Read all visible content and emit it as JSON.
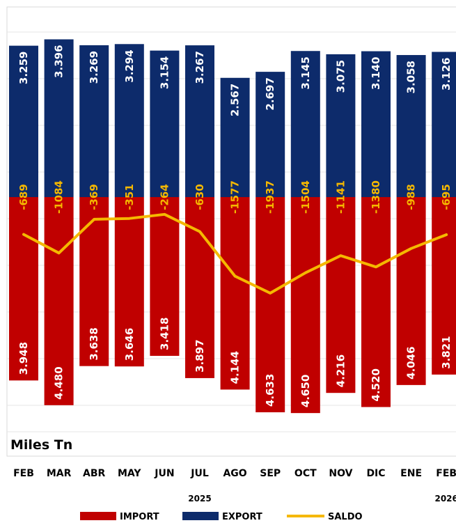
{
  "chart_data": {
    "type": "bar",
    "unit_label": "Miles Tn",
    "categories": [
      "FEB",
      "MAR",
      "ABR",
      "MAY",
      "JUN",
      "JUL",
      "AGO",
      "SEP",
      "OCT",
      "NOV",
      "DIC",
      "ENE",
      "FEB"
    ],
    "year_labels": [
      {
        "category_index": 5,
        "text": "2025"
      },
      {
        "category_index": 12,
        "text": "2026"
      }
    ],
    "series": [
      {
        "name": "EXPORT",
        "color": "#0d2b6b",
        "values": [
          3259,
          3396,
          3269,
          3294,
          3154,
          3267,
          2567,
          2697,
          3145,
          3075,
          3140,
          3058,
          3126
        ],
        "labels": [
          "3.259",
          "3.396",
          "3.269",
          "3.294",
          "3.154",
          "3.267",
          "2.567",
          "2.697",
          "3.145",
          "3.075",
          "3.140",
          "3.058",
          "3.126"
        ]
      },
      {
        "name": "IMPORT",
        "color": "#c00000",
        "values": [
          3948,
          4480,
          3638,
          3646,
          3418,
          3897,
          4144,
          4633,
          4650,
          4216,
          4520,
          4046,
          3821
        ],
        "labels": [
          "3.948",
          "4.480",
          "3.638",
          "3.646",
          "3.418",
          "3.897",
          "4.144",
          "4.633",
          "4.650",
          "4.216",
          "4.520",
          "4.046",
          "3.821"
        ]
      },
      {
        "name": "SALDO",
        "color": "#f5b800",
        "type": "line",
        "values": [
          -689,
          -1084,
          -369,
          -351,
          -264,
          -630,
          -1577,
          -1937,
          -1504,
          -1141,
          -1380,
          -988,
          -695
        ],
        "labels": [
          "-689",
          "-1084",
          "-369",
          "-351",
          "-264",
          "-630",
          "-1577",
          "-1937",
          "-1504",
          "-1141",
          "-1380",
          "-988",
          "-695"
        ]
      }
    ],
    "legend": {
      "placement": "bottom",
      "items": [
        "IMPORT",
        "EXPORT",
        "SALDO"
      ]
    },
    "grid": true
  }
}
